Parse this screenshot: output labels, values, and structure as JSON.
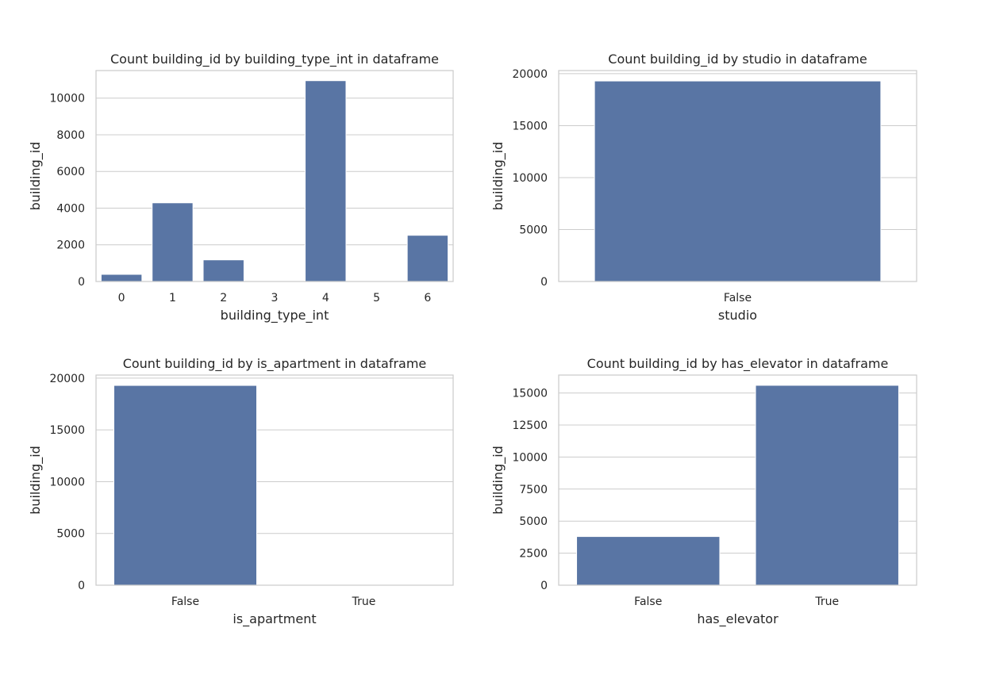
{
  "chart_data": [
    {
      "type": "bar",
      "title": "Count building_id by building_type_int in dataframe",
      "xlabel": "building_type_int",
      "ylabel": "building_id",
      "categories": [
        "0",
        "1",
        "2",
        "3",
        "4",
        "5",
        "6"
      ],
      "values": [
        390,
        4290,
        1180,
        0,
        10950,
        0,
        2520
      ],
      "yticks": [
        0,
        2000,
        4000,
        6000,
        8000,
        10000
      ],
      "ylim": [
        0,
        11500
      ],
      "grid": true,
      "color": "#5975a4"
    },
    {
      "type": "bar",
      "title": "Count building_id by studio in dataframe",
      "xlabel": "studio",
      "ylabel": "building_id",
      "categories": [
        "False"
      ],
      "values": [
        19300
      ],
      "yticks": [
        0,
        5000,
        10000,
        15000,
        20000
      ],
      "ylim": [
        0,
        20300
      ],
      "grid": true,
      "color": "#5975a4"
    },
    {
      "type": "bar",
      "title": "Count building_id by is_apartment in dataframe",
      "xlabel": "is_apartment",
      "ylabel": "building_id",
      "categories": [
        "False",
        "True"
      ],
      "values": [
        19300,
        0
      ],
      "yticks": [
        0,
        5000,
        10000,
        15000,
        20000
      ],
      "ylim": [
        0,
        20300
      ],
      "grid": true,
      "color": "#5975a4"
    },
    {
      "type": "bar",
      "title": "Count building_id by has_elevator in dataframe",
      "xlabel": "has_elevator",
      "ylabel": "building_id",
      "categories": [
        "False",
        "True"
      ],
      "values": [
        3800,
        15600
      ],
      "yticks": [
        0,
        2500,
        5000,
        7500,
        10000,
        12500,
        15000
      ],
      "ylim": [
        0,
        16400
      ],
      "grid": true,
      "color": "#5975a4"
    }
  ]
}
